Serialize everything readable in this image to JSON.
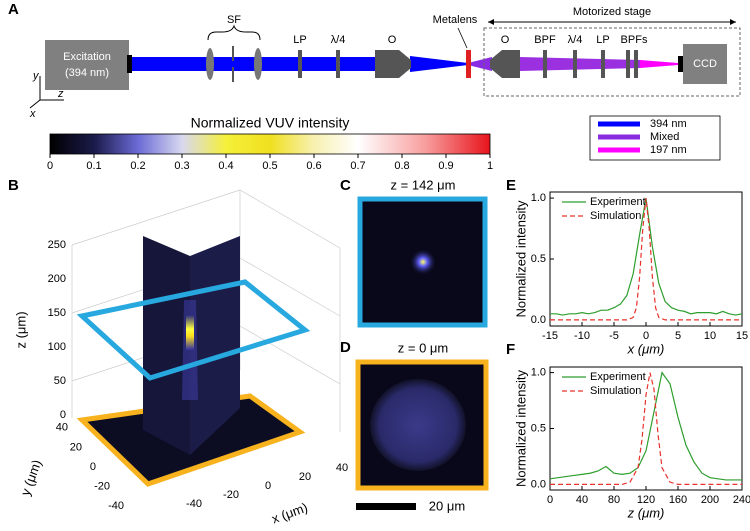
{
  "panel_labels": [
    "A",
    "B",
    "C",
    "D",
    "E",
    "F"
  ],
  "diagram": {
    "source": [
      "Excitation",
      "(394 nm)"
    ],
    "components": [
      "SF",
      "LP",
      "λ/4",
      "O",
      "O",
      "BPF",
      "λ/4",
      "LP",
      "BPFs"
    ],
    "metalens": "Metalens",
    "stage": "Motorized stage",
    "detector": "CCD",
    "axes": [
      "y",
      "z",
      "x"
    ]
  },
  "legend": [
    {
      "label": "394 nm",
      "color": "#0000ff"
    },
    {
      "label": "Mixed",
      "color": "#8a2be2"
    },
    {
      "label": "197 nm",
      "color": "#ff00ff"
    }
  ],
  "colorbar": {
    "title": "Normalized VUV intensity",
    "ticks": [
      0,
      0.1,
      0.2,
      0.3,
      0.4,
      0.5,
      0.6,
      0.7,
      0.8,
      0.9,
      1
    ]
  },
  "panel_b": {
    "zticks": [
      0,
      50,
      100,
      150,
      200,
      250
    ],
    "yticks": [
      40,
      20,
      0,
      -20,
      -40
    ],
    "xticks": [
      -40,
      -20,
      0,
      20,
      40
    ],
    "zlabel": "z (μm)",
    "ylabel": "y (μm)",
    "xlabel": "x (μm)"
  },
  "panel_c": {
    "title": "z = 142 μm"
  },
  "panel_d": {
    "title": "z = 0 μm",
    "scale_bar": "20 μm"
  },
  "chart_data": [
    {
      "type": "line",
      "xlabel": "x (μm)",
      "ylabel": "Normalized intensity",
      "xlim": [
        -15,
        15
      ],
      "ylim": [
        -0.05,
        1.05
      ],
      "xticks": [
        -15,
        -10,
        -5,
        0,
        5,
        10,
        15
      ],
      "yticks": [
        {
          "value": 0,
          "label": "0.0"
        },
        {
          "value": 0.5,
          "label": "0.5"
        },
        {
          "value": 1,
          "label": "1.0"
        }
      ],
      "series": [
        {
          "name": "Experiment",
          "color": "#2e9e2e",
          "dash": false,
          "x": [
            -15,
            -14,
            -13,
            -12,
            -11,
            -10,
            -9,
            -8,
            -7,
            -6,
            -5,
            -4,
            -3,
            -2,
            -1,
            0,
            1,
            2,
            3,
            4,
            5,
            6,
            7,
            8,
            9,
            10,
            11,
            12,
            13,
            14,
            15
          ],
          "values": [
            0.05,
            0.05,
            0.04,
            0.05,
            0.05,
            0.06,
            0.05,
            0.06,
            0.08,
            0.08,
            0.1,
            0.13,
            0.2,
            0.38,
            0.7,
            1.0,
            0.6,
            0.3,
            0.15,
            0.1,
            0.08,
            0.07,
            0.05,
            0.06,
            0.06,
            0.06,
            0.05,
            0.07,
            0.05,
            0.04,
            0.05
          ]
        },
        {
          "name": "Simulation",
          "color": "#e8322c",
          "dash": true,
          "x": [
            -15,
            -3,
            -2,
            -1.5,
            -1,
            -0.5,
            0,
            0.5,
            1,
            1.5,
            2,
            3,
            15
          ],
          "values": [
            0,
            0,
            0.02,
            0.1,
            0.35,
            0.75,
            1.0,
            0.75,
            0.35,
            0.1,
            0.02,
            0,
            0
          ]
        }
      ]
    },
    {
      "type": "line",
      "xlabel": "z (μm)",
      "ylabel": "Normalized intensity",
      "xlim": [
        0,
        240
      ],
      "ylim": [
        -0.05,
        1.05
      ],
      "xticks": [
        0,
        40,
        80,
        120,
        160,
        200,
        240
      ],
      "yticks": [
        {
          "value": 0,
          "label": "0.0"
        },
        {
          "value": 0.5,
          "label": "0.5"
        },
        {
          "value": 1,
          "label": "1.0"
        }
      ],
      "series": [
        {
          "name": "Experiment",
          "color": "#2e9e2e",
          "dash": false,
          "x": [
            0,
            10,
            20,
            30,
            40,
            50,
            60,
            70,
            80,
            90,
            100,
            110,
            120,
            130,
            140,
            150,
            160,
            170,
            180,
            190,
            200,
            210,
            220,
            230,
            240
          ],
          "values": [
            0.05,
            0.06,
            0.07,
            0.08,
            0.09,
            0.1,
            0.12,
            0.16,
            0.1,
            0.09,
            0.1,
            0.15,
            0.3,
            0.65,
            1.0,
            0.9,
            0.6,
            0.35,
            0.2,
            0.1,
            0.06,
            0.05,
            0.04,
            0.04,
            0.04
          ]
        },
        {
          "name": "Simulation",
          "color": "#e8322c",
          "dash": true,
          "x": [
            0,
            90,
            100,
            110,
            115,
            120,
            125,
            130,
            135,
            140,
            150,
            160,
            240
          ],
          "values": [
            0,
            0,
            0.02,
            0.15,
            0.4,
            0.8,
            1.0,
            0.85,
            0.45,
            0.15,
            0.02,
            0,
            0
          ]
        }
      ]
    }
  ]
}
